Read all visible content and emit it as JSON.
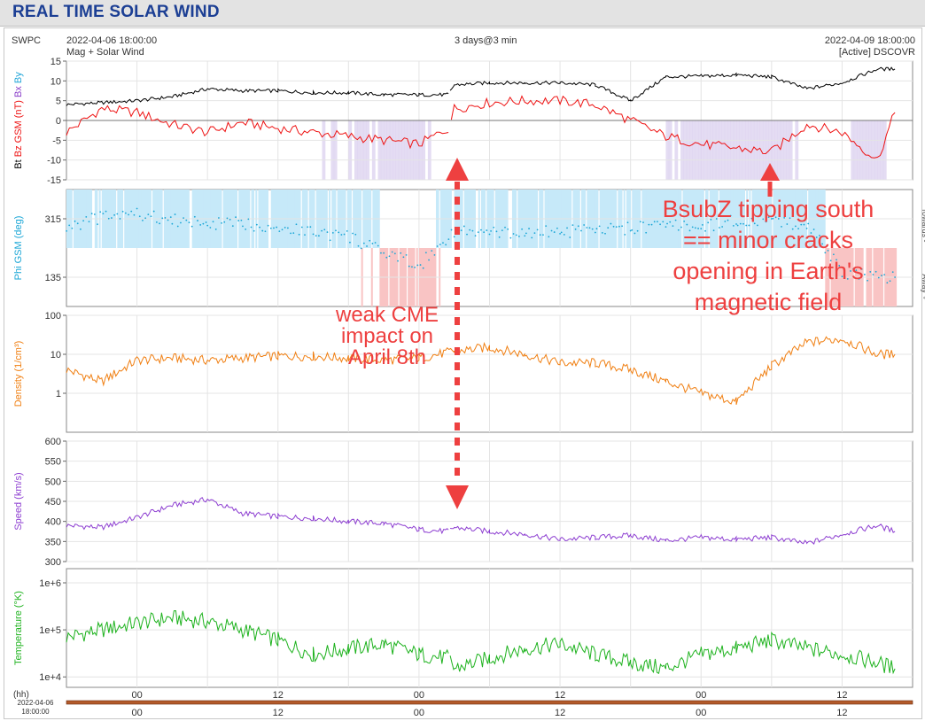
{
  "page_title": "REAL TIME SOLAR WIND",
  "header": {
    "source": "SWPC",
    "start_time": "2022-04-06 18:00:00",
    "product": "Mag + Solar Wind",
    "span": "3 days@3 min",
    "end_time": "2022-04-09 18:00:00",
    "spacecraft": "[Active] DSCOVR"
  },
  "annotations": {
    "left": [
      "weak CME",
      "impact on",
      "April 8th"
    ],
    "right": [
      "BsubZ tipping south",
      "== minor cracks",
      "opening in Earth's",
      "magnetic field"
    ]
  },
  "colors": {
    "bt": "#000000",
    "bz": "#ee1111",
    "bx": "#8a3fc9",
    "by": "#22a5d8",
    "phi": "#1aa6d6",
    "density": "#f07f12",
    "speed": "#8d3ed1",
    "temperature": "#1db21d",
    "toward_fill": "#c6e9f9",
    "away_fill": "#f9c4c4",
    "bz_south_fill": "#ddd3f0",
    "annotation": "#ee4040"
  },
  "chart_data": [
    {
      "type": "line",
      "ylabel_parts": [
        "Bt",
        "Bz GSM (nT)",
        "Bx",
        "By"
      ],
      "ylim": [
        -15,
        15
      ],
      "yticks": [
        -15,
        -10,
        -5,
        0,
        5,
        10,
        15
      ],
      "x_hours": [
        0,
        3,
        6,
        9,
        12,
        15,
        18,
        21,
        24,
        27,
        30,
        32.5,
        33,
        36,
        39,
        42,
        45,
        48,
        51,
        54,
        57,
        60,
        63,
        66,
        69,
        70.5
      ],
      "series": [
        {
          "name": "Bt",
          "values": [
            4,
            4.5,
            5,
            6,
            8,
            7.5,
            7.5,
            7,
            7,
            6.5,
            6.5,
            6.5,
            9,
            9.5,
            9.5,
            9.5,
            9,
            5,
            11,
            11.2,
            11.5,
            11,
            8,
            9.5,
            13,
            13
          ]
        },
        {
          "name": "Bz GSM",
          "values": [
            -3,
            3,
            2,
            -1,
            -3,
            -0.5,
            -2,
            -3,
            -4,
            -5,
            -6,
            -2,
            3,
            4.5,
            5,
            5,
            4,
            0,
            -4,
            -6,
            -7,
            -8,
            -1,
            -3,
            -10,
            2
          ]
        }
      ]
    },
    {
      "type": "scatter",
      "ylabel": "Phi GSM (deg)",
      "ylim": [
        45,
        405
      ],
      "yticks": [
        135,
        315
      ],
      "side_labels": [
        "Towards -",
        "Away +"
      ],
      "x_hours": [
        0,
        3,
        6,
        9,
        12,
        15,
        18,
        21,
        24,
        27,
        30,
        33,
        36,
        39,
        42,
        45,
        48,
        51,
        54,
        57,
        60,
        63,
        66,
        69,
        70.5
      ],
      "values": [
        290,
        320,
        330,
        310,
        300,
        300,
        290,
        275,
        260,
        210,
        170,
        278,
        270,
        272,
        275,
        278,
        285,
        295,
        290,
        310,
        305,
        300,
        150,
        140,
        135
      ]
    },
    {
      "type": "line",
      "ylabel": "Density (1/cm³)",
      "yscale": "log",
      "ylim": [
        0.1,
        100
      ],
      "ytick_values": [
        1,
        10,
        100
      ],
      "ytick_labels": [
        "1",
        "10",
        "100"
      ],
      "x_hours": [
        0,
        3,
        6,
        9,
        12,
        15,
        18,
        21,
        24,
        27,
        30,
        33,
        36,
        39,
        42,
        45,
        48,
        51,
        54,
        57,
        60,
        63,
        66,
        69,
        70.5
      ],
      "values": [
        4,
        2,
        7,
        8,
        7,
        8,
        9,
        9,
        8,
        7,
        8,
        12,
        15,
        10,
        6,
        6,
        4,
        2,
        1,
        0.6,
        5,
        20,
        25,
        10,
        10
      ]
    },
    {
      "type": "line",
      "ylabel": "Speed (km/s)",
      "ylim": [
        300,
        600
      ],
      "yticks": [
        300,
        350,
        400,
        450,
        500,
        550,
        600
      ],
      "x_hours": [
        0,
        3,
        6,
        9,
        12,
        15,
        18,
        21,
        24,
        27,
        30,
        32.5,
        33,
        36,
        39,
        42,
        45,
        48,
        51,
        54,
        57,
        60,
        63,
        66,
        69,
        70.5
      ],
      "values": [
        390,
        385,
        410,
        440,
        455,
        420,
        412,
        408,
        400,
        395,
        380,
        375,
        385,
        375,
        368,
        355,
        360,
        365,
        352,
        360,
        355,
        360,
        345,
        368,
        390,
        375
      ]
    },
    {
      "type": "line",
      "ylabel": "Temperature (°K)",
      "yscale": "log",
      "ylim": [
        6000,
        2000000
      ],
      "ytick_values": [
        10000,
        100000,
        1000000
      ],
      "ytick_labels": [
        "1e+4",
        "1e+5",
        "1e+6"
      ],
      "x_hours": [
        0,
        3,
        6,
        9,
        12,
        15,
        18,
        21,
        24,
        27,
        30,
        32.5,
        33,
        36,
        39,
        42,
        45,
        48,
        51,
        54,
        57,
        60,
        63,
        66,
        69,
        70.5
      ],
      "values": [
        70000,
        100000,
        140000,
        180000,
        150000,
        100000,
        60000,
        30000,
        40000,
        50000,
        30000,
        25000,
        15000,
        25000,
        40000,
        50000,
        30000,
        20000,
        15000,
        30000,
        40000,
        60000,
        40000,
        30000,
        20000,
        15000
      ]
    }
  ],
  "x_axis": {
    "unit": "(hh)",
    "start_label": [
      "2022-04-06",
      "18:00:00"
    ],
    "tick_hours": [
      6,
      18,
      30,
      42,
      54,
      66
    ],
    "tick_labels": [
      "00",
      "12",
      "00",
      "12",
      "00",
      "12"
    ]
  }
}
